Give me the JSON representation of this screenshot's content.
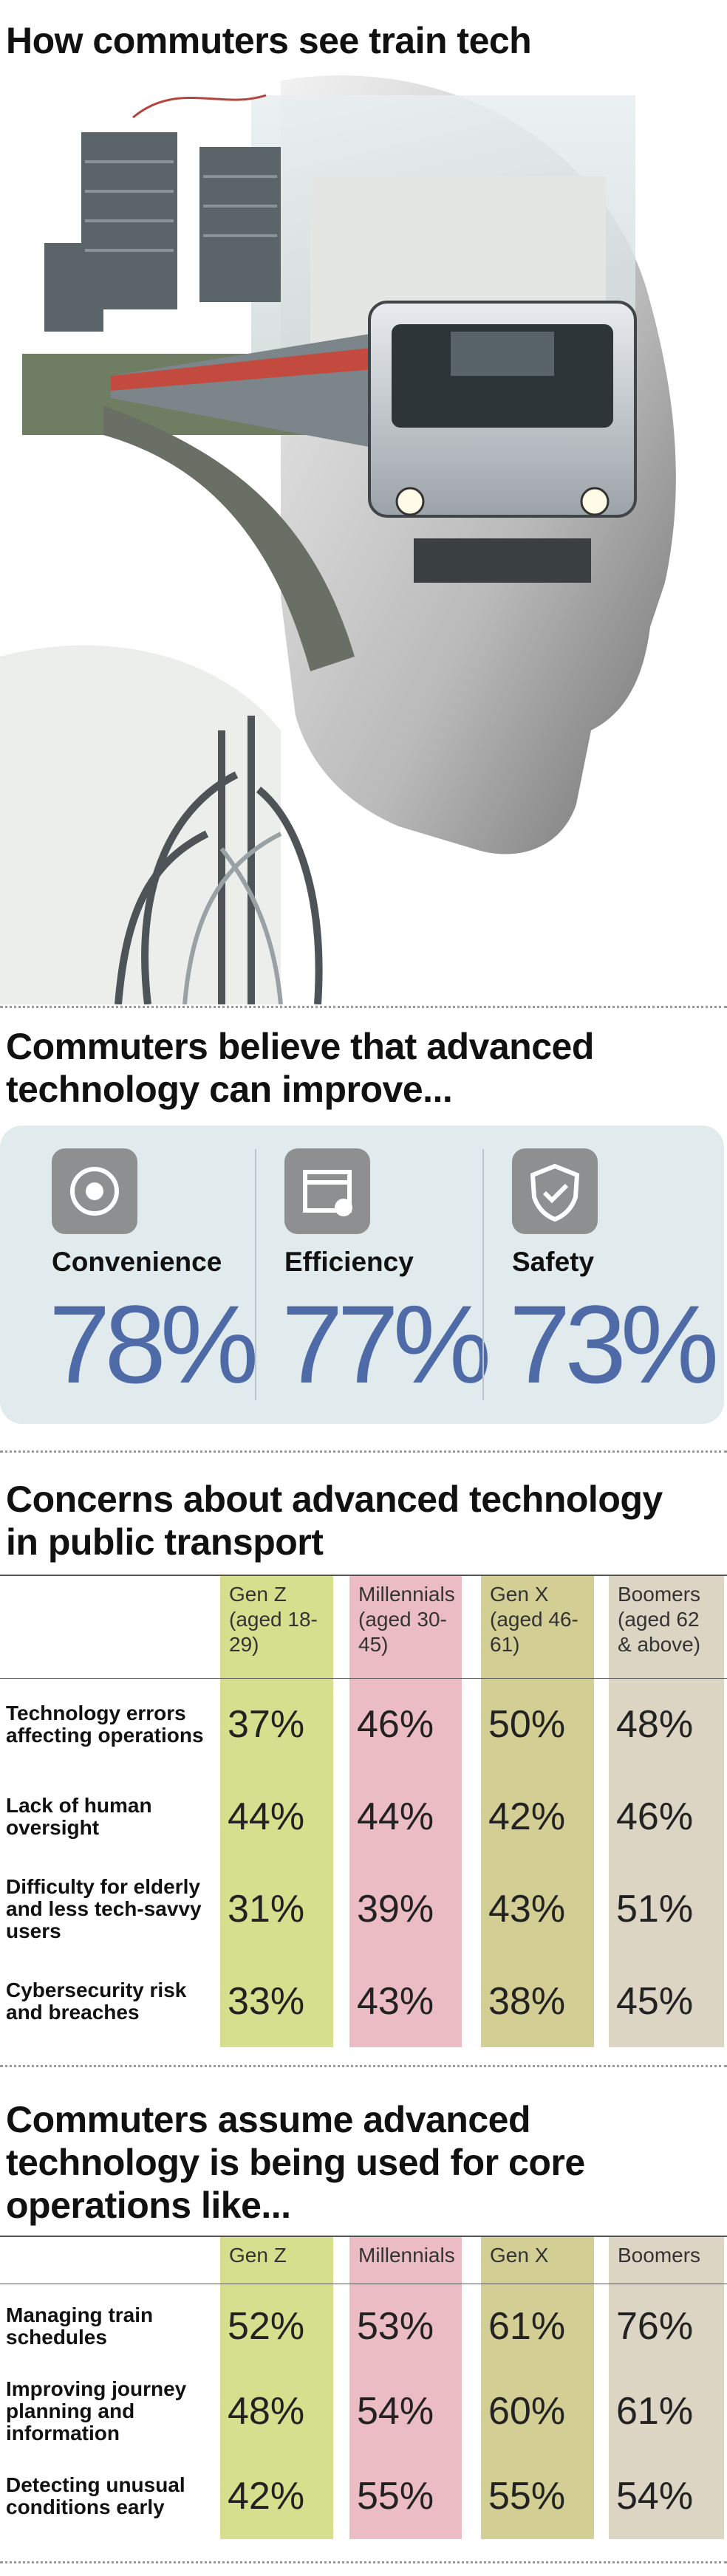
{
  "header": {
    "title": "How commuters see train tech"
  },
  "benefits": {
    "title": "Commuters believe that advanced technology can improve...",
    "items": [
      {
        "label": "Convenience",
        "value": "78%"
      },
      {
        "label": "Efficiency",
        "value": "77%"
      },
      {
        "label": "Safety",
        "value": "73%"
      }
    ]
  },
  "concerns": {
    "title": "Concerns about advanced technology in public transport",
    "columns": [
      "Gen Z (aged 18-29)",
      "Millennials (aged 30-45)",
      "Gen X (aged 46-61)",
      "Boomers (aged 62 & above)"
    ],
    "rows": [
      {
        "label": "Technology errors affecting operations",
        "values": [
          "37%",
          "46%",
          "50%",
          "48%"
        ]
      },
      {
        "label": "Lack of human oversight",
        "values": [
          "44%",
          "44%",
          "42%",
          "46%"
        ]
      },
      {
        "label": "Difficulty for elderly and less tech-savvy users",
        "values": [
          "31%",
          "39%",
          "43%",
          "51%"
        ]
      },
      {
        "label": "Cybersecurity risk and breaches",
        "values": [
          "33%",
          "43%",
          "38%",
          "45%"
        ]
      }
    ]
  },
  "operations": {
    "title": "Commuters assume advanced technology is being used for core operations like...",
    "columns": [
      "Gen Z",
      "Millennials",
      "Gen X",
      "Boomers"
    ],
    "rows": [
      {
        "label": "Managing train schedules",
        "values": [
          "52%",
          "53%",
          "61%",
          "76%"
        ]
      },
      {
        "label": "Improving journey planning and information",
        "values": [
          "48%",
          "54%",
          "60%",
          "61%"
        ]
      },
      {
        "label": "Detecting unusual conditions early",
        "values": [
          "42%",
          "55%",
          "55%",
          "54%"
        ]
      }
    ]
  }
}
